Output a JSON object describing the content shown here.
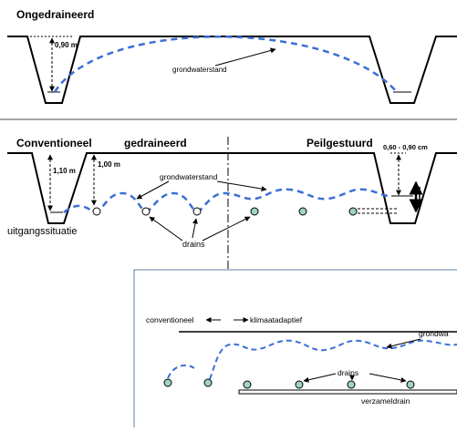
{
  "top": {
    "title": "Ongedraineerd",
    "depth_label": "0,90 m",
    "groundwater_label": "grondwaterstand"
  },
  "middle": {
    "title_left": "Conventioneel",
    "title_center": "gedraineerd",
    "title_right": "Peilgestuurd",
    "depth_left": "1,10 m",
    "depth_mid": "1,00 m",
    "depth_right": "0,60 - 0,90 cm",
    "groundwater_label": "grondwaterstand",
    "drains_label": "drains",
    "initial_label": "uitgangssituatie"
  },
  "inset": {
    "conventional_label": "conventioneel",
    "adaptive_label": "klimaatadaptief",
    "groundwater_label": "grondwa",
    "drains_label": "drains",
    "collector_label": "verzameldrain"
  },
  "colors": {
    "water_line": "#3b6fd6",
    "drain_fill": "#9fd3c7",
    "line": "#000000",
    "separator": "#888888",
    "inset_border": "#5d7fa0"
  }
}
